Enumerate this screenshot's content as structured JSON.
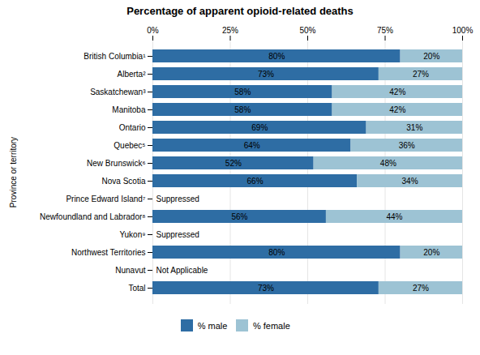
{
  "chart_data": {
    "type": "bar",
    "orientation": "horizontal",
    "stacked": true,
    "title": "Percentage of apparent opioid-related deaths",
    "ylabel": "Province or territory",
    "categories": [
      "British Columbia¹",
      "Alberta²",
      "Saskatchewan³",
      "Manitoba",
      "Ontario",
      "Quebec⁵",
      "New Brunswick⁶",
      "Nova Scotia",
      "Prince Edward Island⁷",
      "Newfoundland and Labrador⁸",
      "Yukon⁹",
      "Northwest Territories",
      "Nunavut",
      "Total"
    ],
    "series": [
      {
        "name": "% male",
        "color": "#2E6DA4",
        "values": [
          80,
          73,
          58,
          58,
          69,
          64,
          52,
          66,
          null,
          56,
          null,
          80,
          null,
          73
        ],
        "value_labels": [
          "80%",
          "73%",
          "58%",
          "58%",
          "69%",
          "64%",
          "52%",
          "66%",
          null,
          "56%",
          null,
          "80%",
          null,
          "73%"
        ]
      },
      {
        "name": "% female",
        "color": "#9DC3D4",
        "values": [
          20,
          27,
          42,
          42,
          31,
          36,
          48,
          34,
          null,
          44,
          null,
          20,
          null,
          27
        ],
        "value_labels": [
          "20%",
          "27%",
          "42%",
          "42%",
          "31%",
          "36%",
          "48%",
          "34%",
          null,
          "44%",
          null,
          "20%",
          null,
          "27%"
        ]
      }
    ],
    "data_labels": true,
    "annotations": [
      {
        "category": "Prince Edward Island⁷",
        "text": "Suppressed"
      },
      {
        "category": "Yukon⁹",
        "text": "Suppressed"
      },
      {
        "category": "Nunavut",
        "text": "Not Applicable"
      }
    ],
    "xlim": [
      0,
      100
    ],
    "xticks": [
      {
        "value": 0,
        "label": "0%"
      },
      {
        "value": 25,
        "label": "25%"
      },
      {
        "value": 50,
        "label": "50%"
      },
      {
        "value": 75,
        "label": "75%"
      },
      {
        "value": 100,
        "label": "100%"
      }
    ],
    "grid": true,
    "legend": "bottom"
  }
}
